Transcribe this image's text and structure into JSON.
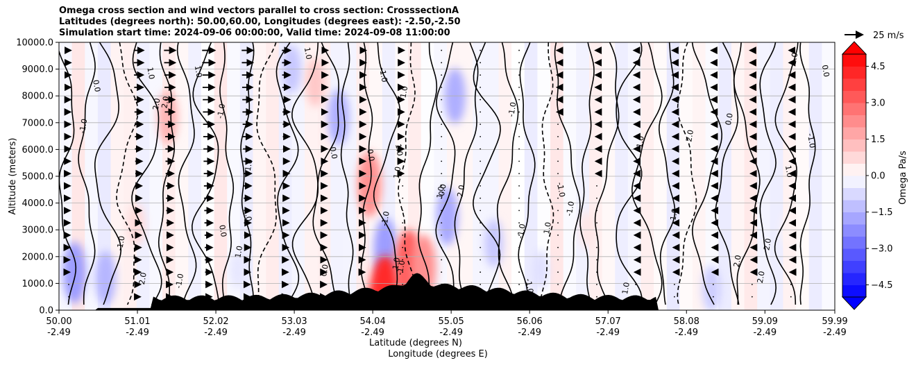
{
  "chart_data": {
    "type": "heatmap",
    "title_lines": [
      "Omega cross section and wind vectors parallel to cross section: CrosssectionA",
      "Latitudes (degrees north): 50.00,60.00, Longitudes (degrees east): -2.50,-2.50",
      "Simulation start time: 2024-09-06 00:00:00, Valid time: 2024-09-08 11:00:00"
    ],
    "ylabel": "Altitude (meters)",
    "xlabel_lines": [
      "Latitude (degrees N)",
      "Longitude (degrees E)"
    ],
    "ylim": [
      0,
      10000
    ],
    "yticks": [
      "0.0",
      "1000.0",
      "2000.0",
      "3000.0",
      "4000.0",
      "5000.0",
      "6000.0",
      "7000.0",
      "8000.0",
      "9000.0",
      "10000.0"
    ],
    "xticks": [
      {
        "lat": "50.00",
        "lon": "-2.49"
      },
      {
        "lat": "51.01",
        "lon": "-2.49"
      },
      {
        "lat": "52.02",
        "lon": "-2.49"
      },
      {
        "lat": "53.03",
        "lon": "-2.49"
      },
      {
        "lat": "54.04",
        "lon": "-2.49"
      },
      {
        "lat": "55.05",
        "lon": "-2.49"
      },
      {
        "lat": "56.06",
        "lon": "-2.49"
      },
      {
        "lat": "57.07",
        "lon": "-2.49"
      },
      {
        "lat": "58.08",
        "lon": "-2.49"
      },
      {
        "lat": "59.09",
        "lon": "-2.49"
      },
      {
        "lat": "59.99",
        "lon": "-2.49"
      }
    ],
    "grid": "horizontal",
    "colorbar": {
      "label": "Omega Pa/s",
      "range": [
        -5,
        5
      ],
      "ticks": [
        "4.5",
        "3.0",
        "1.5",
        "0.0",
        "−1.5",
        "−3.0",
        "−4.5"
      ],
      "colormap": "bwr",
      "levels": 20
    },
    "quiver_key": {
      "label": "25 m/s",
      "speed": 25
    },
    "contour_labels": [
      "0.0",
      "1.0",
      "-1.0",
      "2.0",
      "1.0",
      "-1.0"
    ],
    "wind_profile": {
      "description": "u-component along section (m/s) by column region",
      "columns_lat": [
        50.0,
        50.9,
        51.3,
        51.8,
        52.3,
        52.8,
        53.3,
        53.8,
        54.3,
        54.8,
        55.3,
        55.8,
        56.3,
        56.8,
        57.3,
        57.8,
        58.3,
        58.8,
        59.3,
        59.9
      ],
      "upper_u": [
        6,
        14,
        16,
        18,
        16,
        12,
        8,
        6,
        4,
        2,
        1,
        -1,
        -3,
        -4,
        -5,
        -6,
        -6,
        -6,
        -5,
        -4
      ],
      "lower_u": [
        2,
        4,
        6,
        8,
        6,
        4,
        3,
        2,
        1,
        0,
        0,
        -1,
        -1,
        -1,
        -2,
        -2,
        -2,
        -2,
        -2,
        -1
      ]
    },
    "omega_features": [
      {
        "lat": 50.2,
        "alt": 1400,
        "omega": -1.6
      },
      {
        "lat": 50.6,
        "alt": 1200,
        "omega": -1.2
      },
      {
        "lat": 51.0,
        "alt": 3200,
        "omega": 0.6
      },
      {
        "lat": 51.4,
        "alt": 7200,
        "omega": 1.2
      },
      {
        "lat": 52.3,
        "alt": 1500,
        "omega": -0.4
      },
      {
        "lat": 53.0,
        "alt": 9000,
        "omega": -0.9
      },
      {
        "lat": 53.3,
        "alt": 8500,
        "omega": 0.9
      },
      {
        "lat": 53.6,
        "alt": 7200,
        "omega": -1.3
      },
      {
        "lat": 54.0,
        "alt": 4700,
        "omega": 1.8
      },
      {
        "lat": 54.2,
        "alt": 2300,
        "omega": -1.6
      },
      {
        "lat": 54.2,
        "alt": 200,
        "omega": 3.5
      },
      {
        "lat": 54.5,
        "alt": 1500,
        "omega": 2.6
      },
      {
        "lat": 54.7,
        "alt": 1600,
        "omega": 1.8
      },
      {
        "lat": 55.0,
        "alt": 3500,
        "omega": -1.4
      },
      {
        "lat": 55.1,
        "alt": 8000,
        "omega": -1.3
      },
      {
        "lat": 55.6,
        "alt": 2500,
        "omega": -0.9
      },
      {
        "lat": 56.2,
        "alt": 1500,
        "omega": -0.5
      },
      {
        "lat": 56.8,
        "alt": 3000,
        "omega": 0.4
      },
      {
        "lat": 58.4,
        "alt": 800,
        "omega": -0.8
      },
      {
        "lat": 59.4,
        "alt": 3000,
        "omega": 0.2
      }
    ]
  }
}
